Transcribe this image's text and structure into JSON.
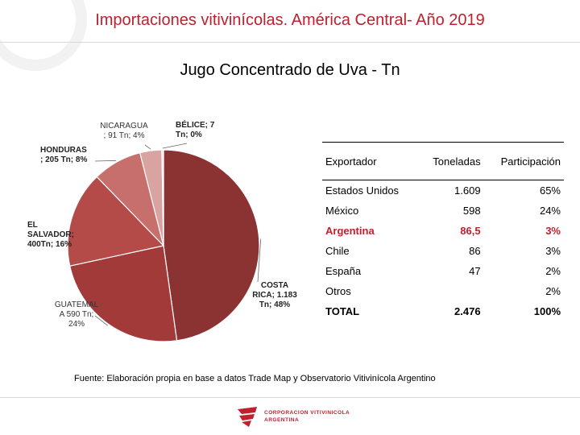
{
  "slide_title": "Importaciones vitivinícolas. América Central- Año 2019",
  "chart_data": {
    "type": "pie",
    "title": "Jugo Concentrado de Uva - Tn",
    "slices": [
      {
        "name": "COSTA RICA",
        "value": 1183,
        "percent": 48,
        "color": "#8b3232",
        "label_lines": [
          "COSTA",
          "RICA; 1.183",
          "Tn; 48%"
        ]
      },
      {
        "name": "GUATEMALA",
        "value": 590,
        "percent": 24,
        "color": "#a33a3a",
        "label_lines": [
          "GUATEMAL",
          "A  590 Tn;",
          "24%"
        ]
      },
      {
        "name": "EL SALVADOR",
        "value": 400,
        "percent": 16,
        "color": "#b54b48",
        "label_lines": [
          "EL",
          "SALVADOR;",
          "400Tn; 16%"
        ]
      },
      {
        "name": "HONDURAS",
        "value": 205,
        "percent": 8,
        "color": "#c66f6c",
        "label_lines": [
          "HONDURAS",
          "; 205 Tn; 8%"
        ]
      },
      {
        "name": "NICARAGUA",
        "value": 91,
        "percent": 4,
        "color": "#d9a3a1",
        "label_lines": [
          "NICARAGUA",
          "; 91 Tn; 4%"
        ]
      },
      {
        "name": "BÉLICE",
        "value": 7,
        "percent": 0,
        "color": "#f0d8d6",
        "label_lines": [
          "BÉLICE; 7",
          "Tn; 0%"
        ]
      }
    ]
  },
  "table": {
    "headers": [
      "Exportador",
      "Toneladas",
      "Participación"
    ],
    "rows": [
      {
        "exportador": "Estados Unidos",
        "toneladas": "1.609",
        "participacion": "65%"
      },
      {
        "exportador": "México",
        "toneladas": "598",
        "participacion": "24%"
      },
      {
        "exportador": "Argentina",
        "toneladas": "86,5",
        "participacion": "3%"
      },
      {
        "exportador": "Chile",
        "toneladas": "86",
        "participacion": "3%"
      },
      {
        "exportador": "España",
        "toneladas": "47",
        "participacion": "2%"
      },
      {
        "exportador": "Otros",
        "toneladas": "",
        "participacion": "2%"
      }
    ],
    "total": {
      "exportador": "TOTAL",
      "toneladas": "2.476",
      "participacion": "100%"
    }
  },
  "source": "Fuente: Elaboración propia en base a datos Trade Map y Observatorio Vitivinícola Argentino",
  "logo": {
    "line1": "CORPORACION VITIVINICOLA",
    "line2": "ARGENTINA"
  },
  "colors": {
    "accent": "#c0202e"
  }
}
